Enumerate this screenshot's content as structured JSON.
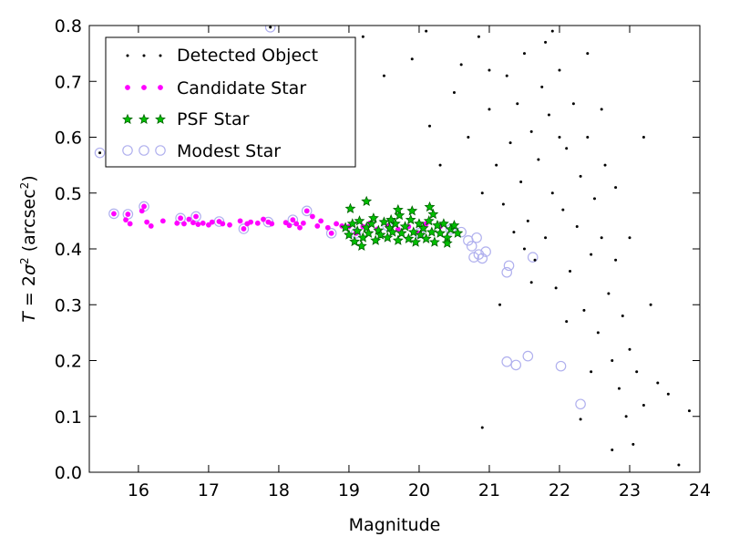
{
  "chart_data": {
    "type": "scatter",
    "xlabel": "Magnitude",
    "ylabel_main": "T = 2σ",
    "ylabel_exp": "2",
    "ylabel_unit": "(arcsec",
    "ylabel_unit_exp": "2",
    "ylabel_close": ")",
    "xlim": [
      15.3,
      24.0
    ],
    "ylim": [
      0.0,
      0.8
    ],
    "xticks": [
      16,
      17,
      18,
      19,
      20,
      21,
      22,
      23,
      24
    ],
    "yticks": [
      0.0,
      0.1,
      0.2,
      0.3,
      0.4,
      0.5,
      0.6,
      0.7,
      0.8
    ],
    "xtick_labels": [
      "16",
      "17",
      "18",
      "19",
      "20",
      "21",
      "22",
      "23",
      "24"
    ],
    "ytick_labels": [
      "0.0",
      "0.1",
      "0.2",
      "0.3",
      "0.4",
      "0.5",
      "0.6",
      "0.7",
      "0.8"
    ],
    "grid": false,
    "legend_placement": "top-left",
    "legend": [
      {
        "name": "Detected Object",
        "marker": "dot",
        "color": "#000000"
      },
      {
        "name": "Candidate Star",
        "marker": "circle-small",
        "color": "#ff00ff"
      },
      {
        "name": "PSF Star",
        "marker": "star",
        "color": "#008000"
      },
      {
        "name": "Modest Star",
        "marker": "circle-open",
        "color": "#b0b0ee"
      }
    ],
    "series": [
      {
        "name": "Candidate Star",
        "color": "#ff00ff",
        "points": [
          [
            15.65,
            0.463
          ],
          [
            15.82,
            0.452
          ],
          [
            15.85,
            0.462
          ],
          [
            15.88,
            0.445
          ],
          [
            16.05,
            0.468
          ],
          [
            16.08,
            0.476
          ],
          [
            16.12,
            0.448
          ],
          [
            16.18,
            0.441
          ],
          [
            16.35,
            0.45
          ],
          [
            16.55,
            0.446
          ],
          [
            16.6,
            0.455
          ],
          [
            16.65,
            0.445
          ],
          [
            16.72,
            0.453
          ],
          [
            16.78,
            0.447
          ],
          [
            16.82,
            0.458
          ],
          [
            16.85,
            0.444
          ],
          [
            16.92,
            0.446
          ],
          [
            17.0,
            0.443
          ],
          [
            17.05,
            0.448
          ],
          [
            17.15,
            0.449
          ],
          [
            17.2,
            0.445
          ],
          [
            17.3,
            0.443
          ],
          [
            17.45,
            0.45
          ],
          [
            17.5,
            0.436
          ],
          [
            17.55,
            0.445
          ],
          [
            17.6,
            0.448
          ],
          [
            17.7,
            0.446
          ],
          [
            17.78,
            0.453
          ],
          [
            17.85,
            0.448
          ],
          [
            17.9,
            0.445
          ],
          [
            18.1,
            0.447
          ],
          [
            18.15,
            0.442
          ],
          [
            18.2,
            0.452
          ],
          [
            18.25,
            0.445
          ],
          [
            18.3,
            0.438
          ],
          [
            18.35,
            0.446
          ],
          [
            18.4,
            0.468
          ],
          [
            18.48,
            0.458
          ],
          [
            18.55,
            0.441
          ],
          [
            18.6,
            0.45
          ],
          [
            18.7,
            0.438
          ],
          [
            18.75,
            0.428
          ],
          [
            18.82,
            0.445
          ],
          [
            18.9,
            0.441
          ],
          [
            19.0,
            0.44
          ],
          [
            19.1,
            0.428
          ],
          [
            19.2,
            0.44
          ],
          [
            19.3,
            0.446
          ],
          [
            19.4,
            0.435
          ],
          [
            19.55,
            0.441
          ],
          [
            19.7,
            0.435
          ],
          [
            19.85,
            0.44
          ],
          [
            20.0,
            0.428
          ],
          [
            20.1,
            0.445
          ],
          [
            20.3,
            0.44
          ],
          [
            20.45,
            0.435
          ]
        ]
      },
      {
        "name": "PSF Star",
        "color": "#008000",
        "points": [
          [
            18.95,
            0.438
          ],
          [
            19.0,
            0.425
          ],
          [
            19.05,
            0.445
          ],
          [
            19.08,
            0.413
          ],
          [
            19.12,
            0.432
          ],
          [
            19.15,
            0.45
          ],
          [
            19.2,
            0.42
          ],
          [
            19.25,
            0.438
          ],
          [
            19.28,
            0.428
          ],
          [
            19.32,
            0.445
          ],
          [
            19.38,
            0.415
          ],
          [
            19.42,
            0.433
          ],
          [
            19.45,
            0.425
          ],
          [
            19.5,
            0.448
          ],
          [
            19.55,
            0.42
          ],
          [
            19.58,
            0.437
          ],
          [
            19.62,
            0.43
          ],
          [
            19.66,
            0.445
          ],
          [
            19.7,
            0.415
          ],
          [
            19.72,
            0.46
          ],
          [
            19.75,
            0.428
          ],
          [
            19.8,
            0.44
          ],
          [
            19.85,
            0.418
          ],
          [
            19.88,
            0.452
          ],
          [
            19.92,
            0.43
          ],
          [
            19.95,
            0.412
          ],
          [
            20.0,
            0.445
          ],
          [
            20.02,
            0.425
          ],
          [
            20.06,
            0.437
          ],
          [
            20.1,
            0.418
          ],
          [
            20.14,
            0.45
          ],
          [
            20.18,
            0.43
          ],
          [
            20.22,
            0.412
          ],
          [
            20.26,
            0.442
          ],
          [
            20.3,
            0.428
          ],
          [
            20.35,
            0.445
          ],
          [
            20.4,
            0.42
          ],
          [
            20.45,
            0.435
          ],
          [
            20.5,
            0.442
          ],
          [
            20.55,
            0.428
          ],
          [
            19.02,
            0.472
          ],
          [
            19.25,
            0.485
          ],
          [
            19.7,
            0.47
          ],
          [
            19.9,
            0.468
          ],
          [
            20.15,
            0.475
          ],
          [
            20.2,
            0.462
          ],
          [
            19.6,
            0.452
          ],
          [
            19.35,
            0.455
          ],
          [
            20.4,
            0.41
          ],
          [
            19.18,
            0.405
          ]
        ]
      },
      {
        "name": "Modest Star",
        "color": "#b0b0ee",
        "points": [
          [
            15.45,
            0.572
          ],
          [
            15.75,
            0.575
          ],
          [
            15.92,
            0.578
          ],
          [
            17.88,
            0.797
          ],
          [
            15.65,
            0.463
          ],
          [
            15.85,
            0.462
          ],
          [
            16.08,
            0.476
          ],
          [
            16.6,
            0.455
          ],
          [
            16.82,
            0.458
          ],
          [
            17.15,
            0.449
          ],
          [
            17.5,
            0.436
          ],
          [
            17.85,
            0.448
          ],
          [
            18.2,
            0.452
          ],
          [
            18.4,
            0.468
          ],
          [
            18.75,
            0.428
          ],
          [
            19.1,
            0.428
          ],
          [
            19.55,
            0.441
          ],
          [
            20.0,
            0.428
          ],
          [
            20.45,
            0.435
          ],
          [
            20.6,
            0.43
          ],
          [
            20.7,
            0.415
          ],
          [
            20.75,
            0.405
          ],
          [
            20.78,
            0.385
          ],
          [
            20.82,
            0.42
          ],
          [
            20.85,
            0.39
          ],
          [
            20.9,
            0.383
          ],
          [
            20.95,
            0.395
          ],
          [
            21.25,
            0.358
          ],
          [
            21.28,
            0.37
          ],
          [
            21.25,
            0.198
          ],
          [
            21.38,
            0.192
          ],
          [
            21.55,
            0.208
          ],
          [
            21.62,
            0.385
          ],
          [
            22.02,
            0.19
          ],
          [
            22.3,
            0.122
          ]
        ]
      },
      {
        "name": "Detected Object",
        "color": "#000000",
        "points": [
          [
            15.45,
            0.572
          ],
          [
            15.92,
            0.578
          ],
          [
            17.88,
            0.797
          ],
          [
            18.5,
            0.73
          ],
          [
            18.7,
            0.6
          ],
          [
            19.2,
            0.78
          ],
          [
            19.5,
            0.71
          ],
          [
            19.9,
            0.74
          ],
          [
            20.15,
            0.62
          ],
          [
            20.3,
            0.55
          ],
          [
            20.5,
            0.68
          ],
          [
            20.7,
            0.6
          ],
          [
            20.9,
            0.5
          ],
          [
            20.85,
            0.78
          ],
          [
            21.0,
            0.65
          ],
          [
            21.1,
            0.55
          ],
          [
            21.2,
            0.48
          ],
          [
            21.25,
            0.71
          ],
          [
            21.3,
            0.59
          ],
          [
            21.35,
            0.43
          ],
          [
            21.4,
            0.66
          ],
          [
            21.45,
            0.52
          ],
          [
            21.5,
            0.75
          ],
          [
            21.55,
            0.45
          ],
          [
            21.6,
            0.61
          ],
          [
            21.65,
            0.38
          ],
          [
            21.7,
            0.56
          ],
          [
            21.75,
            0.69
          ],
          [
            21.8,
            0.42
          ],
          [
            21.85,
            0.64
          ],
          [
            21.9,
            0.5
          ],
          [
            21.95,
            0.33
          ],
          [
            22.0,
            0.72
          ],
          [
            22.05,
            0.47
          ],
          [
            22.1,
            0.58
          ],
          [
            22.15,
            0.36
          ],
          [
            22.2,
            0.66
          ],
          [
            22.25,
            0.44
          ],
          [
            22.3,
            0.53
          ],
          [
            22.35,
            0.29
          ],
          [
            22.4,
            0.6
          ],
          [
            22.45,
            0.39
          ],
          [
            22.5,
            0.49
          ],
          [
            22.55,
            0.25
          ],
          [
            22.6,
            0.42
          ],
          [
            22.65,
            0.55
          ],
          [
            22.7,
            0.32
          ],
          [
            22.75,
            0.2
          ],
          [
            22.8,
            0.38
          ],
          [
            22.85,
            0.15
          ],
          [
            22.9,
            0.28
          ],
          [
            22.95,
            0.1
          ],
          [
            23.0,
            0.22
          ],
          [
            23.05,
            0.05
          ],
          [
            23.1,
            0.18
          ],
          [
            23.2,
            0.12
          ],
          [
            23.3,
            0.3
          ],
          [
            23.4,
            0.16
          ],
          [
            23.55,
            0.14
          ],
          [
            23.7,
            0.013
          ],
          [
            23.85,
            0.11
          ],
          [
            20.9,
            0.08
          ],
          [
            22.3,
            0.095
          ],
          [
            22.75,
            0.04
          ],
          [
            21.0,
            0.72
          ],
          [
            21.8,
            0.77
          ],
          [
            22.0,
            0.6
          ],
          [
            22.4,
            0.75
          ],
          [
            21.5,
            0.4
          ],
          [
            22.6,
            0.65
          ],
          [
            23.0,
            0.42
          ],
          [
            21.15,
            0.3
          ],
          [
            21.6,
            0.34
          ],
          [
            22.1,
            0.27
          ],
          [
            22.45,
            0.18
          ],
          [
            22.8,
            0.51
          ],
          [
            23.2,
            0.6
          ],
          [
            21.9,
            0.79
          ],
          [
            20.6,
            0.73
          ],
          [
            20.1,
            0.79
          ]
        ]
      }
    ]
  }
}
